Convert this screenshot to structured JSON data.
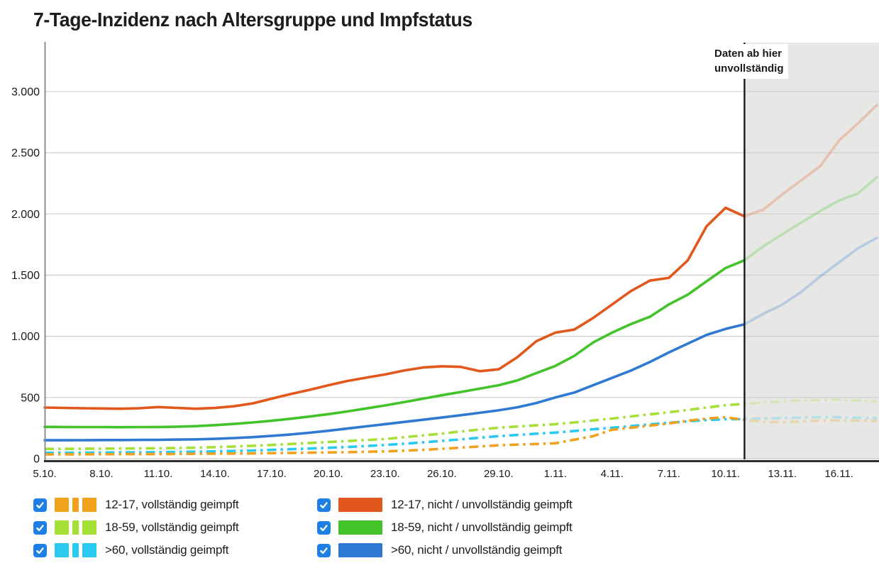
{
  "title": "7-Tage-Inzidenz nach Altersgruppe und Impfstatus",
  "annotation": {
    "line1": "Daten ab hier",
    "line2": "unvollständig"
  },
  "colors": {
    "background": "#ffffff",
    "incomplete_region": "#e7e7e5",
    "gridline": "#cdcdca",
    "y_axis_line": "#8c8c8c",
    "x_axis_line": "#2e2e2e",
    "incomplete_boundary_line": "#1a1a1a",
    "tick_text": "#1a1a1a",
    "checkbox_blue": "#1e80e5"
  },
  "chart_data": {
    "type": "line",
    "title": "7-Tage-Inzidenz nach Altersgruppe und Impfstatus",
    "xlabel": "",
    "ylabel": "",
    "ylim": [
      0,
      3400
    ],
    "x_domain_days": [
      0,
      44
    ],
    "grid": "horizontal",
    "legend_position": "bottom",
    "x_tick_days": [
      0,
      3,
      6,
      9,
      12,
      15,
      18,
      21,
      24,
      27,
      30,
      33,
      36,
      39,
      42
    ],
    "x_tick_labels": [
      "5.10.",
      "8.10.",
      "11.10.",
      "14.10.",
      "17.10.",
      "20.10.",
      "23.10.",
      "26.10.",
      "29.10.",
      "1.11.",
      "4.11.",
      "7.11.",
      "10.11.",
      "13.11.",
      "16.11."
    ],
    "y_tick_values": [
      0,
      500,
      1000,
      1500,
      2000,
      2500,
      3000
    ],
    "y_tick_labels": [
      "0",
      "500",
      "1.000",
      "1.500",
      "2.000",
      "2.500",
      "3.000"
    ],
    "incomplete_from_day": 37,
    "incomplete_note": "Daten ab hier unvollständig",
    "faded_opacity": 0.26,
    "series": [
      {
        "name": "12-17, vollständig geimpft",
        "color": "#f0a11d",
        "style": "dashdot",
        "checked": true,
        "values": [
          35,
          35,
          36,
          36,
          37,
          37,
          38,
          39,
          40,
          41,
          42,
          43,
          45,
          47,
          49,
          51,
          53,
          56,
          60,
          65,
          72,
          80,
          90,
          100,
          109,
          115,
          120,
          126,
          155,
          184,
          236,
          253,
          270,
          288,
          310,
          328,
          339,
          316,
          300,
          298,
          305,
          310,
          312,
          310,
          308
        ]
      },
      {
        "name": "18-59, vollständig geimpft",
        "color": "#a4e036",
        "style": "dashdot",
        "checked": true,
        "values": [
          80,
          80,
          81,
          82,
          83,
          84,
          85,
          87,
          90,
          94,
          99,
          105,
          112,
          120,
          128,
          136,
          144,
          152,
          160,
          175,
          190,
          205,
          222,
          238,
          253,
          263,
          272,
          282,
          296,
          312,
          328,
          345,
          362,
          379,
          398,
          418,
          437,
          448,
          458,
          468,
          475,
          480,
          483,
          474,
          466
        ]
      },
      {
        "name": ">60, vollständig geimpft",
        "color": "#2ac9ef",
        "style": "dashdot",
        "checked": true,
        "values": [
          48,
          48,
          49,
          50,
          51,
          52,
          53,
          55,
          57,
          60,
          63,
          67,
          72,
          77,
          83,
          89,
          95,
          103,
          112,
          122,
          133,
          145,
          158,
          171,
          184,
          194,
          204,
          213,
          226,
          240,
          253,
          266,
          280,
          293,
          305,
          316,
          322,
          324,
          328,
          332,
          336,
          340,
          338,
          334,
          330
        ]
      },
      {
        "name": "12-17, nicht / unvollständig geimpft",
        "color": "#e2581c",
        "style": "solid",
        "checked": true,
        "values": [
          418,
          415,
          412,
          410,
          408,
          412,
          422,
          415,
          408,
          414,
          428,
          452,
          490,
          528,
          562,
          600,
          635,
          662,
          688,
          720,
          745,
          755,
          750,
          715,
          730,
          830,
          960,
          1030,
          1055,
          1150,
          1260,
          1370,
          1455,
          1477,
          1620,
          1900,
          2050,
          1980,
          2035,
          2160,
          2275,
          2390,
          2600,
          2740,
          2890
        ]
      },
      {
        "name": "18-59, nicht / unvollständig geimpft",
        "color": "#43c32a",
        "style": "solid",
        "checked": true,
        "values": [
          260,
          259,
          258,
          258,
          257,
          258,
          259,
          261,
          266,
          274,
          284,
          296,
          310,
          326,
          344,
          364,
          386,
          410,
          435,
          462,
          490,
          518,
          545,
          572,
          600,
          640,
          700,
          758,
          840,
          950,
          1030,
          1100,
          1160,
          1260,
          1340,
          1450,
          1558,
          1621,
          1736,
          1834,
          1930,
          2023,
          2110,
          2167,
          2300
        ]
      },
      {
        "name": ">60, nicht / unvollständig geimpft",
        "color": "#2f79d2",
        "style": "solid",
        "checked": true,
        "values": [
          150,
          150,
          151,
          152,
          152,
          153,
          154,
          156,
          158,
          162,
          168,
          176,
          186,
          198,
          212,
          228,
          246,
          264,
          282,
          300,
          318,
          336,
          355,
          375,
          395,
          420,
          455,
          500,
          540,
          600,
          660,
          720,
          790,
          868,
          940,
          1012,
          1060,
          1098,
          1184,
          1259,
          1363,
          1489,
          1604,
          1719,
          1805
        ]
      }
    ]
  }
}
